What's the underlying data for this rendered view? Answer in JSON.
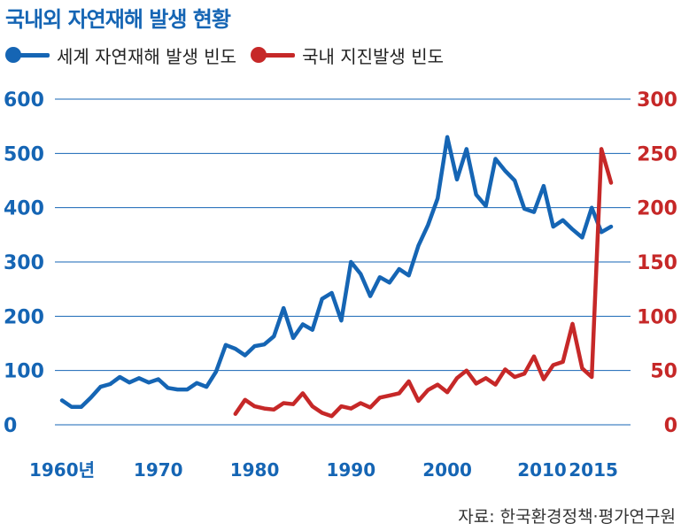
{
  "title": "국내외 자연재해 발생 현황",
  "legend": [
    {
      "label": "세계 자연재해 발생 빈도",
      "color": "#1565b4"
    },
    {
      "label": "국내 지진발생 빈도",
      "color": "#c62828"
    }
  ],
  "source": "자료: 한국환경정책·평가연구원",
  "chart_data": {
    "type": "line",
    "y_left": {
      "ylim": [
        0,
        600
      ],
      "ticks": [
        "0",
        "100",
        "200",
        "300",
        "400",
        "500",
        "600"
      ]
    },
    "y_right": {
      "ylim": [
        0,
        300
      ],
      "ticks": [
        "0",
        "50",
        "100",
        "150",
        "200",
        "250",
        "300"
      ]
    },
    "x_ticks": [
      {
        "value": 1960,
        "label": "1960년"
      },
      {
        "value": 1970,
        "label": "1970"
      },
      {
        "value": 1980,
        "label": "1980"
      },
      {
        "value": 1990,
        "label": "1990"
      },
      {
        "value": 2000,
        "label": "2000"
      },
      {
        "value": 2010,
        "label": "2010"
      },
      {
        "value": 2015,
        "label": "2015"
      }
    ],
    "grid": true,
    "series": [
      {
        "name": "세계 자연재해 발생 빈도",
        "axis": "left",
        "color": "#1565b4",
        "x": [
          1960,
          1961,
          1962,
          1963,
          1964,
          1965,
          1966,
          1967,
          1968,
          1969,
          1970,
          1971,
          1972,
          1973,
          1974,
          1975,
          1976,
          1977,
          1978,
          1979,
          1980,
          1981,
          1982,
          1983,
          1984,
          1985,
          1986,
          1987,
          1988,
          1989,
          1990,
          1991,
          1992,
          1993,
          1994,
          1995,
          1996,
          1997,
          1998,
          1999,
          2000,
          2001,
          2002,
          2003,
          2004,
          2005,
          2006,
          2007,
          2008,
          2009,
          2010,
          2011,
          2012,
          2013,
          2014,
          2015,
          2016,
          2017
        ],
        "values": [
          45,
          33,
          33,
          50,
          70,
          75,
          88,
          78,
          86,
          78,
          84,
          68,
          65,
          65,
          77,
          70,
          98,
          147,
          140,
          128,
          145,
          148,
          163,
          215,
          160,
          185,
          175,
          232,
          243,
          192,
          300,
          278,
          237,
          272,
          262,
          287,
          275,
          330,
          368,
          417,
          530,
          452,
          508,
          424,
          403,
          490,
          468,
          450,
          398,
          392,
          440,
          365,
          377,
          360,
          345,
          400,
          355,
          365
        ]
      },
      {
        "name": "국내 지진발생 빈도",
        "axis": "right",
        "color": "#c62828",
        "x": [
          1978,
          1979,
          1980,
          1981,
          1982,
          1983,
          1984,
          1985,
          1986,
          1987,
          1988,
          1989,
          1990,
          1991,
          1992,
          1993,
          1994,
          1995,
          1996,
          1997,
          1998,
          1999,
          2000,
          2001,
          2002,
          2003,
          2004,
          2005,
          2006,
          2007,
          2008,
          2009,
          2010,
          2011,
          2012,
          2013,
          2014,
          2015,
          2016,
          2017
        ],
        "values": [
          10,
          23,
          17,
          15,
          14,
          20,
          19,
          29,
          17,
          11,
          8,
          17,
          15,
          20,
          16,
          25,
          27,
          29,
          40,
          22,
          32,
          37,
          30,
          43,
          50,
          38,
          43,
          37,
          51,
          44,
          47,
          63,
          42,
          55,
          58,
          93,
          52,
          44,
          254,
          223
        ]
      }
    ]
  }
}
